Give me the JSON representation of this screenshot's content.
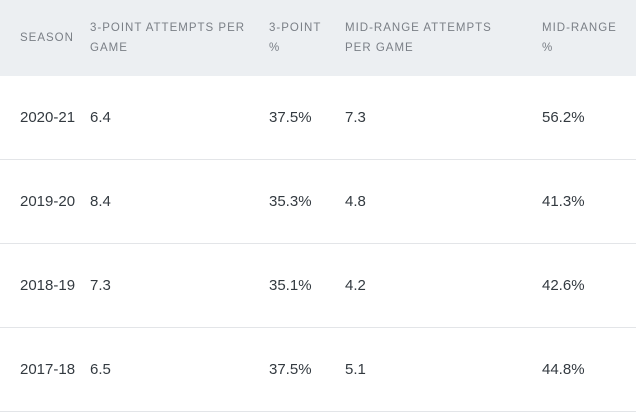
{
  "table": {
    "headers": [
      "SEASON",
      "3-POINT ATTEMPTS PER GAME",
      "3-POINT %",
      "MID-RANGE ATTEMPTS PER GAME",
      "MID-RANGE %"
    ],
    "rows": [
      [
        "2020-21",
        "6.4",
        "37.5%",
        "7.3",
        "56.2%"
      ],
      [
        "2019-20",
        "8.4",
        "35.3%",
        "4.8",
        "41.3%"
      ],
      [
        "2018-19",
        "7.3",
        "35.1%",
        "4.2",
        "42.6%"
      ],
      [
        "2017-18",
        "6.5",
        "37.5%",
        "5.1",
        "44.8%"
      ]
    ]
  }
}
